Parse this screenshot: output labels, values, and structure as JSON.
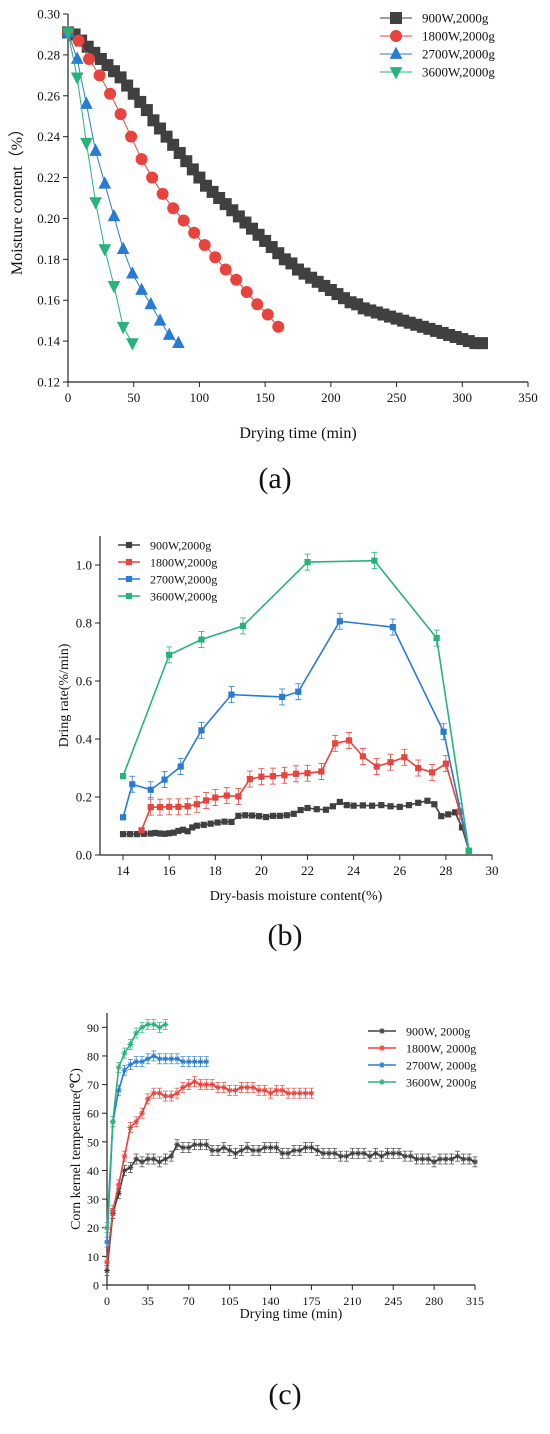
{
  "chart_data": [
    {
      "panel": "a",
      "panel_label": "(a)",
      "type": "scatter",
      "xlabel": "Drying time (min)",
      "ylabel": "Moisture content（%）",
      "xlim": [
        0,
        350
      ],
      "ylim": [
        0.12,
        0.3
      ],
      "xticks": [
        "0",
        "50",
        "100",
        "150",
        "200",
        "250",
        "300",
        "350"
      ],
      "yticks": [
        "0.12",
        "0.14",
        "0.16",
        "0.18",
        "0.20",
        "0.22",
        "0.24",
        "0.26",
        "0.28",
        "0.30"
      ],
      "legend_position": "top-right",
      "colors": {
        "900W,2000g": "#404040",
        "1800W,2000g": "#e8433d",
        "2700W,2000g": "#2a7bd4",
        "3600W,2000g": "#27b37a"
      },
      "series": [
        {
          "name": "900W,2000g",
          "marker": "square",
          "color": "#404040",
          "x": [
            0,
            5,
            10,
            15,
            20,
            25,
            30,
            35,
            40,
            45,
            50,
            55,
            60,
            65,
            70,
            75,
            80,
            85,
            90,
            95,
            100,
            105,
            110,
            115,
            120,
            125,
            130,
            135,
            140,
            145,
            150,
            155,
            160,
            165,
            170,
            175,
            180,
            185,
            190,
            195,
            200,
            205,
            210,
            215,
            220,
            225,
            230,
            235,
            240,
            245,
            250,
            255,
            260,
            265,
            270,
            275,
            280,
            285,
            290,
            295,
            300,
            305,
            310,
            315
          ],
          "y": [
            0.291,
            0.29,
            0.287,
            0.284,
            0.281,
            0.278,
            0.275,
            0.272,
            0.269,
            0.265,
            0.261,
            0.257,
            0.253,
            0.248,
            0.244,
            0.24,
            0.236,
            0.232,
            0.228,
            0.224,
            0.22,
            0.216,
            0.213,
            0.21,
            0.207,
            0.204,
            0.201,
            0.198,
            0.195,
            0.192,
            0.189,
            0.186,
            0.183,
            0.18,
            0.178,
            0.175,
            0.173,
            0.171,
            0.169,
            0.167,
            0.165,
            0.163,
            0.161,
            0.159,
            0.158,
            0.156,
            0.155,
            0.154,
            0.153,
            0.152,
            0.151,
            0.15,
            0.149,
            0.148,
            0.147,
            0.146,
            0.145,
            0.144,
            0.143,
            0.142,
            0.141,
            0.14,
            0.139,
            0.139
          ]
        },
        {
          "name": "1800W,2000g",
          "marker": "circle",
          "color": "#e8433d",
          "x": [
            0,
            8,
            16,
            24,
            32,
            40,
            48,
            56,
            64,
            72,
            80,
            88,
            96,
            104,
            112,
            120,
            128,
            136,
            144,
            152,
            160
          ],
          "y": [
            0.291,
            0.287,
            0.278,
            0.27,
            0.261,
            0.251,
            0.24,
            0.229,
            0.22,
            0.212,
            0.205,
            0.199,
            0.193,
            0.187,
            0.181,
            0.175,
            0.17,
            0.164,
            0.158,
            0.153,
            0.147
          ]
        },
        {
          "name": "2700W,2000g",
          "marker": "triangle-up",
          "color": "#2a7bd4",
          "x": [
            0,
            7,
            14,
            21,
            28,
            35,
            42,
            49,
            56,
            63,
            70,
            77,
            84
          ],
          "y": [
            0.291,
            0.278,
            0.256,
            0.233,
            0.217,
            0.201,
            0.185,
            0.173,
            0.165,
            0.158,
            0.15,
            0.143,
            0.139
          ]
        },
        {
          "name": "3600W,2000g",
          "marker": "triangle-down",
          "color": "#27b37a",
          "x": [
            0,
            7,
            14,
            21,
            28,
            35,
            42,
            49
          ],
          "y": [
            0.291,
            0.269,
            0.237,
            0.208,
            0.185,
            0.167,
            0.147,
            0.139
          ]
        }
      ]
    },
    {
      "panel": "b",
      "panel_label": "(b)",
      "type": "line",
      "xlabel": "Dry-basis moisture content(%)",
      "ylabel": "Dring rate(%/min)",
      "xlim": [
        13,
        30
      ],
      "ylim": [
        0.0,
        1.1
      ],
      "xticks": [
        "14",
        "16",
        "18",
        "20",
        "22",
        "24",
        "26",
        "28",
        "30"
      ],
      "yticks": [
        "0.0",
        "0.2",
        "0.4",
        "0.6",
        "0.8",
        "1.0"
      ],
      "legend_position": "top-left",
      "colors": {
        "900W,2000g": "#404040",
        "1800W,2000g": "#e8433d",
        "2700W,2000g": "#2a7bd4",
        "3600W,2000g": "#27b37a"
      },
      "series": [
        {
          "name": "900W,2000g",
          "color": "#404040",
          "x": [
            14.0,
            14.3,
            14.6,
            14.9,
            15.2,
            15.4,
            15.6,
            15.8,
            16.0,
            16.2,
            16.4,
            16.6,
            16.8,
            17.0,
            17.2,
            17.5,
            17.8,
            18.1,
            18.4,
            18.7,
            19.0,
            19.3,
            19.6,
            19.9,
            20.2,
            20.5,
            20.8,
            21.1,
            21.4,
            21.7,
            22.0,
            22.4,
            22.8,
            23.1,
            23.4,
            23.7,
            24.0,
            24.4,
            24.8,
            25.2,
            25.6,
            26.0,
            26.4,
            26.8,
            27.2,
            27.5,
            27.8,
            28.1,
            28.4,
            28.7,
            29.0
          ],
          "y": [
            0.072,
            0.072,
            0.072,
            0.073,
            0.074,
            0.076,
            0.074,
            0.073,
            0.075,
            0.077,
            0.083,
            0.087,
            0.082,
            0.095,
            0.101,
            0.104,
            0.108,
            0.112,
            0.115,
            0.114,
            0.135,
            0.137,
            0.136,
            0.134,
            0.131,
            0.135,
            0.135,
            0.137,
            0.142,
            0.155,
            0.162,
            0.158,
            0.156,
            0.168,
            0.183,
            0.172,
            0.17,
            0.171,
            0.17,
            0.172,
            0.168,
            0.166,
            0.172,
            0.18,
            0.187,
            0.175,
            0.134,
            0.14,
            0.147,
            0.095,
            0.015
          ]
        },
        {
          "name": "1800W,2000g",
          "color": "#e8433d",
          "x": [
            14.8,
            15.2,
            15.6,
            16.0,
            16.4,
            16.8,
            17.2,
            17.6,
            18.0,
            18.5,
            19.0,
            19.5,
            20.0,
            20.5,
            21.0,
            21.5,
            22.0,
            22.6,
            23.2,
            23.8,
            24.4,
            25.0,
            25.6,
            26.2,
            26.8,
            27.4,
            28.0,
            28.6,
            29.0
          ],
          "y": [
            0.085,
            0.165,
            0.165,
            0.166,
            0.166,
            0.168,
            0.175,
            0.188,
            0.198,
            0.205,
            0.202,
            0.262,
            0.27,
            0.272,
            0.275,
            0.28,
            0.282,
            0.288,
            0.385,
            0.395,
            0.34,
            0.305,
            0.32,
            0.337,
            0.3,
            0.285,
            0.315,
            0.15,
            0.015
          ]
        },
        {
          "name": "2700W,2000g",
          "color": "#2a7bd4",
          "x": [
            14.0,
            14.4,
            15.2,
            15.8,
            16.5,
            17.4,
            18.7,
            20.9,
            21.6,
            23.4,
            25.7,
            27.9,
            29.0
          ],
          "y": [
            0.13,
            0.244,
            0.225,
            0.26,
            0.305,
            0.43,
            0.553,
            0.545,
            0.563,
            0.806,
            0.786,
            0.425,
            0.015
          ]
        },
        {
          "name": "3600W,2000g",
          "color": "#27b37a",
          "x": [
            14.0,
            16.0,
            17.4,
            19.2,
            22.0,
            24.9,
            27.6,
            29.0
          ],
          "y": [
            0.272,
            0.69,
            0.743,
            0.79,
            1.01,
            1.015,
            0.748,
            0.015
          ]
        }
      ]
    },
    {
      "panel": "c",
      "panel_label": "(c)",
      "type": "line",
      "xlabel": "Drying time (min)",
      "ylabel": "Corn kernel temperature(℃)",
      "xlim": [
        0,
        315
      ],
      "ylim": [
        0,
        95
      ],
      "xticks": [
        "0",
        "35",
        "70",
        "105",
        "140",
        "175",
        "210",
        "245",
        "280",
        "315"
      ],
      "yticks": [
        "0",
        "10",
        "20",
        "30",
        "40",
        "50",
        "60",
        "70",
        "80",
        "90"
      ],
      "legend_position": "top-right",
      "colors": {
        "900W, 2000g": "#404040",
        "1800W, 2000g": "#e8433d",
        "2700W, 2000g": "#2a7bd4",
        "3600W, 2000g": "#27b37a"
      },
      "series": [
        {
          "name": "900W, 2000g",
          "color": "#404040",
          "x": [
            0,
            5,
            10,
            15,
            20,
            25,
            30,
            35,
            40,
            45,
            50,
            55,
            60,
            65,
            70,
            75,
            80,
            85,
            90,
            95,
            100,
            105,
            110,
            115,
            120,
            125,
            130,
            135,
            140,
            145,
            150,
            155,
            160,
            165,
            170,
            175,
            180,
            185,
            190,
            195,
            200,
            205,
            210,
            215,
            220,
            225,
            230,
            235,
            240,
            245,
            250,
            255,
            260,
            265,
            270,
            275,
            280,
            285,
            290,
            295,
            300,
            305,
            310,
            315
          ],
          "y": [
            5,
            25,
            32,
            40,
            41,
            44,
            43,
            44,
            44,
            43,
            44,
            45,
            49,
            48,
            48,
            49,
            49,
            49,
            47,
            47,
            48,
            47,
            46,
            47,
            48,
            47,
            47,
            48,
            48,
            48,
            46,
            46,
            47,
            47,
            48,
            48,
            47,
            46,
            46,
            46,
            45,
            45,
            46,
            46,
            46,
            45,
            46,
            45,
            46,
            46,
            46,
            45,
            45,
            44,
            44,
            44,
            43,
            44,
            44,
            44,
            45,
            44,
            44,
            43
          ]
        },
        {
          "name": "1800W, 2000g",
          "color": "#e8433d",
          "x": [
            0,
            5,
            10,
            15,
            20,
            25,
            30,
            35,
            40,
            45,
            50,
            55,
            60,
            65,
            70,
            75,
            80,
            85,
            90,
            95,
            100,
            105,
            110,
            115,
            120,
            125,
            130,
            135,
            140,
            145,
            150,
            155,
            160,
            165,
            170,
            175
          ],
          "y": [
            8,
            26,
            35,
            45,
            55,
            57,
            60,
            65,
            67,
            67,
            66,
            66,
            67,
            69,
            70,
            71,
            70,
            70,
            70,
            69,
            69,
            68,
            68,
            69,
            69,
            69,
            68,
            68,
            67,
            68,
            68,
            67,
            67,
            67,
            67,
            67
          ]
        },
        {
          "name": "2700W, 2000g",
          "color": "#2a7bd4",
          "x": [
            0,
            5,
            10,
            15,
            20,
            25,
            30,
            35,
            40,
            45,
            50,
            55,
            60,
            65,
            70,
            75,
            80,
            85
          ],
          "y": [
            15,
            57,
            68,
            75,
            77,
            78,
            78,
            79,
            80,
            79,
            79,
            79,
            79,
            78,
            78,
            78,
            78,
            78
          ]
        },
        {
          "name": "3600W, 2000g",
          "color": "#27b37a",
          "x": [
            0,
            5,
            10,
            15,
            20,
            25,
            30,
            35,
            40,
            45,
            50
          ],
          "y": [
            20,
            57,
            76,
            81,
            84,
            88,
            90,
            91,
            91,
            90,
            91
          ]
        }
      ]
    }
  ]
}
